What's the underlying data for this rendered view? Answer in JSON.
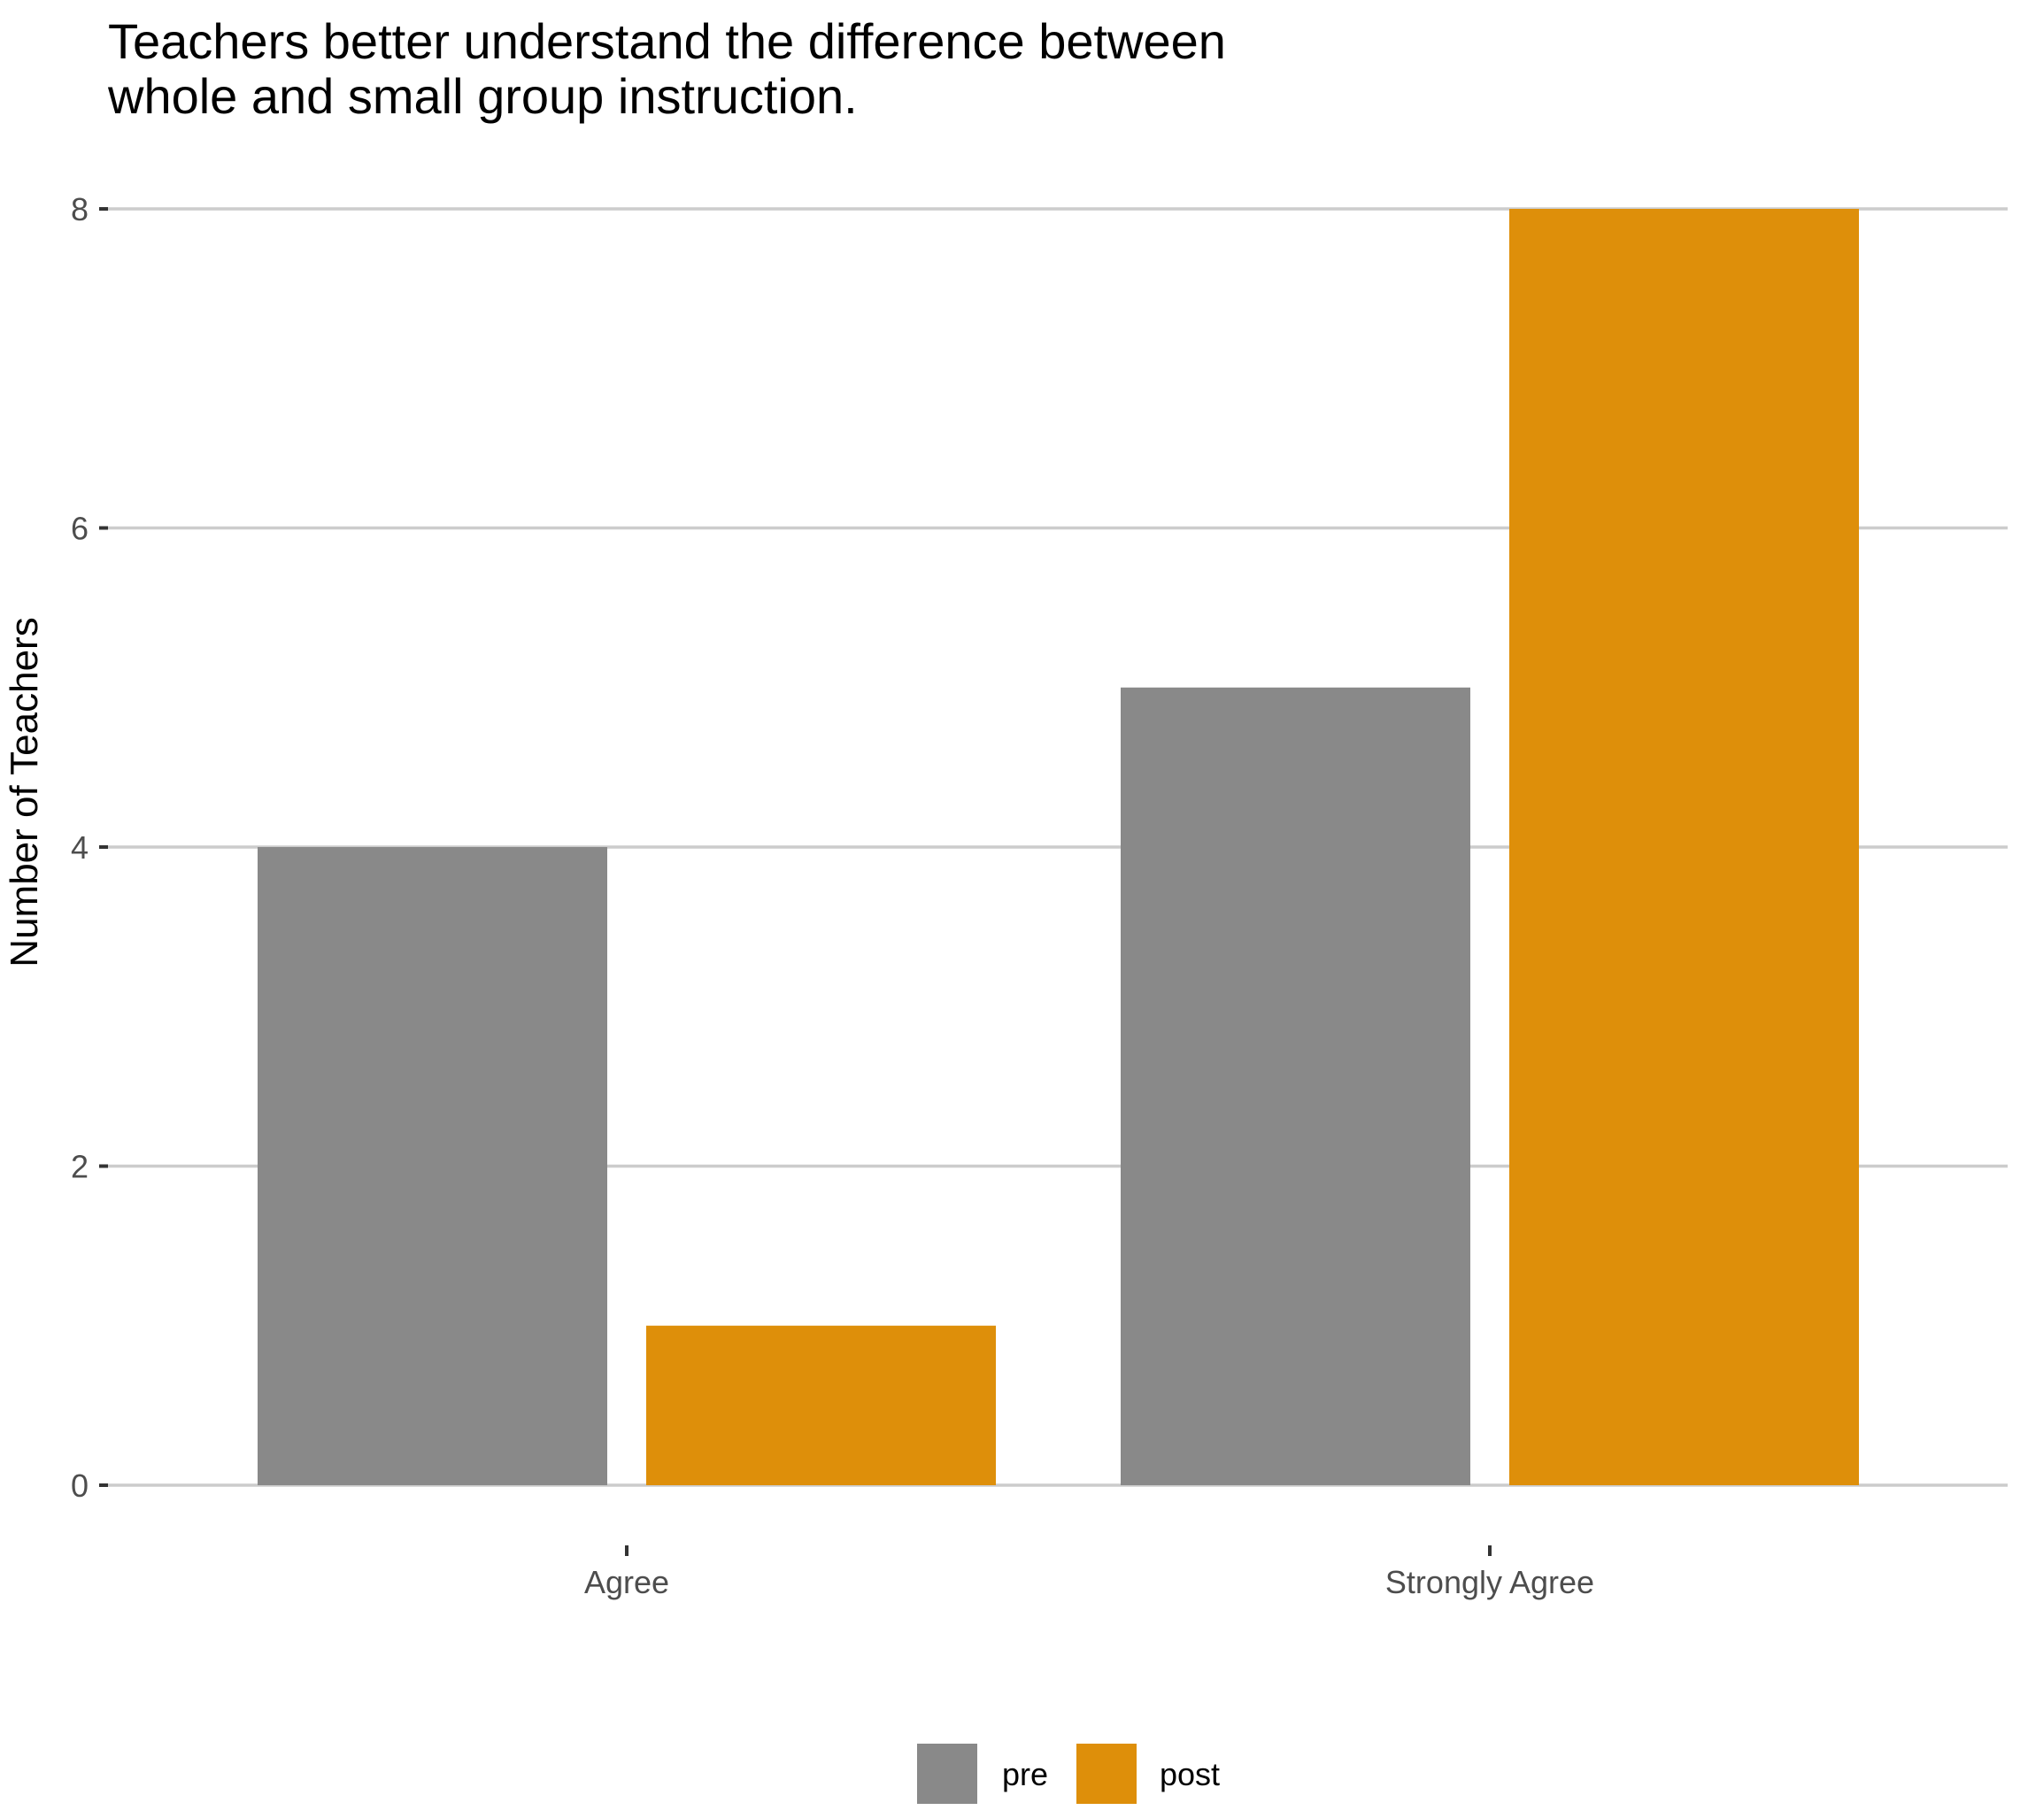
{
  "chart_data": {
    "type": "bar",
    "title": [
      "Teachers better understand the difference between",
      "whole and small group instruction."
    ],
    "xlabel": "",
    "ylabel": "Number of Teachers",
    "categories": [
      "Agree",
      "Strongly Agree"
    ],
    "series": [
      {
        "name": "pre",
        "color": "#898989",
        "values": [
          4,
          5
        ]
      },
      {
        "name": "post",
        "color": "#de8f0a",
        "values": [
          1,
          8
        ]
      }
    ],
    "ylim": [
      0,
      8
    ],
    "yticks": [
      0,
      2,
      4,
      6,
      8
    ],
    "grid": "horizontal",
    "legend_position": "bottom"
  }
}
